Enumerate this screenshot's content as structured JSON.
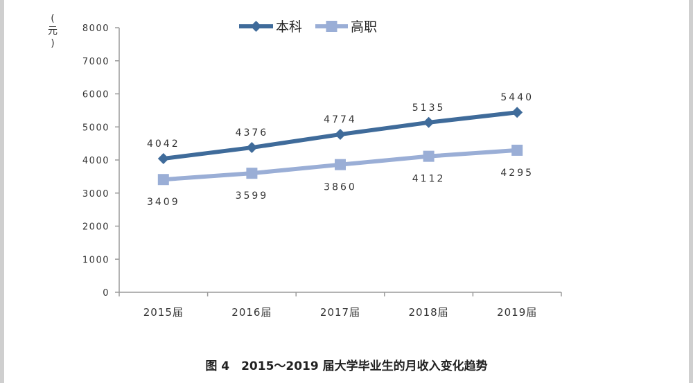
{
  "chart_data": {
    "type": "line",
    "title": "",
    "caption": "图 4　2015～2019 届大学毕业生的月收入变化趋势",
    "ylabel_chars": [
      "(",
      "元",
      ")"
    ],
    "xlabel": "",
    "categories": [
      "2015届",
      "2016届",
      "2017届",
      "2018届",
      "2019届"
    ],
    "ylim": [
      0,
      8000
    ],
    "yticks": [
      "0",
      "1000",
      "2000",
      "3000",
      "4000",
      "5000",
      "6000",
      "7000",
      "8000"
    ],
    "grid": false,
    "legend_position": "top-center",
    "series": [
      {
        "name": "本科",
        "values": [
          4042,
          4376,
          4774,
          5135,
          5440
        ],
        "color": "#3f6b9a",
        "marker": "diamond",
        "label_position": "above"
      },
      {
        "name": "高职",
        "values": [
          3409,
          3599,
          3860,
          4112,
          4295
        ],
        "color": "#9aaed6",
        "marker": "square",
        "label_position": "below"
      }
    ]
  }
}
